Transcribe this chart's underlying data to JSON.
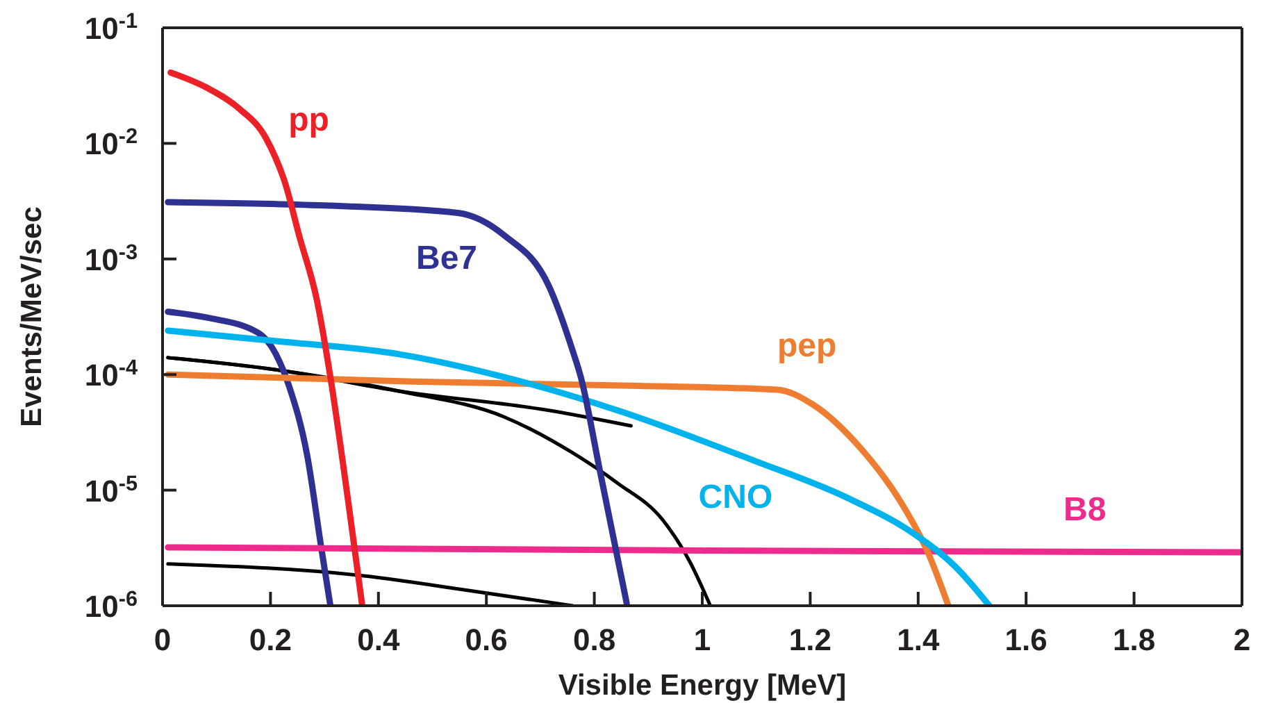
{
  "chart_data": {
    "type": "line",
    "xlabel": "Visible Energy [MeV]",
    "ylabel": "Events/MeV/sec",
    "log": "y",
    "grid": false,
    "legend": false,
    "marker": "none",
    "line_style": "solid",
    "xlim": [
      0,
      2
    ],
    "ylim": [
      1e-06,
      0.1
    ],
    "xticks": [
      0,
      0.2,
      0.4,
      0.6,
      0.8,
      1,
      1.2,
      1.4,
      1.6,
      1.8,
      2
    ],
    "yticks": [
      {
        "value": 1e-06,
        "label": "10$^{-6}$"
      },
      {
        "value": 1e-05,
        "label": "10$^{-5}$"
      },
      {
        "value": 0.0001,
        "label": "10$^{-4}$"
      },
      {
        "value": 0.001,
        "label": "10$^{-3}$"
      },
      {
        "value": 0.01,
        "label": "10$^{-2}$"
      },
      {
        "value": 0.1,
        "label": "10$^{-1}$"
      }
    ],
    "series": [
      {
        "color": "#000000",
        "x": [
          0.01,
          0.21,
          0.438,
          0.716,
          0.868
        ],
        "values": [
          0.00014,
          0.00011,
          7.2e-05,
          4.9e-05,
          3.6e-05
        ]
      },
      {
        "color": "#000000",
        "x": [
          0.01,
          0.21,
          0.438,
          0.633,
          0.76,
          0.843,
          0.927,
          0.977,
          1.015
        ],
        "values": [
          0.00014,
          0.00011,
          7.2e-05,
          4.3e-05,
          2.1e-05,
          1.15e-05,
          5.5e-06,
          2.4e-06,
          1e-06
        ]
      },
      {
        "color": "#000000",
        "x": [
          0.01,
          0.38,
          0.547,
          0.76
        ],
        "values": [
          2.3e-06,
          1.8e-06,
          1.4e-06,
          1e-06
        ]
      },
      {
        "color": "#2e3192",
        "x": [
          0.01,
          0.084,
          0.177,
          0.21,
          0.235,
          0.268,
          0.294,
          0.311
        ],
        "values": [
          0.00035,
          0.00031,
          0.00023,
          0.00015,
          7.8e-05,
          2e-05,
          3.2e-06,
          1e-06
        ]
      },
      {
        "name": "B8",
        "color": "#ec2b8c",
        "x": [
          0.01,
          1,
          2
        ],
        "values": [
          3.2e-06,
          3e-06,
          2.9e-06
        ]
      },
      {
        "name": "pep",
        "color": "#ef7d31",
        "x": [
          0.01,
          0.463,
          0.868,
          1.139,
          1.205,
          1.29,
          1.367,
          1.418,
          1.456
        ],
        "values": [
          0.0001,
          8.7e-05,
          8e-05,
          7.4e-05,
          5.5e-05,
          2.4e-05,
          8e-06,
          2.9e-06,
          1e-06
        ]
      },
      {
        "name": "CNO",
        "color": "#00b3ec",
        "x": [
          0.01,
          0.21,
          0.438,
          0.633,
          0.843,
          1.096,
          1.266,
          1.392,
          1.468,
          1.532
        ],
        "values": [
          0.00024,
          0.000195,
          0.00015,
          9.5e-05,
          4.9e-05,
          1.8e-05,
          8.7e-06,
          4.2e-06,
          2.2e-06,
          1e-06
        ]
      },
      {
        "name": "Be7",
        "color": "#2e3192",
        "x": [
          0.01,
          0.3,
          0.547,
          0.633,
          0.716,
          0.76,
          0.775,
          0.81,
          0.86
        ],
        "values": [
          0.0031,
          0.0029,
          0.0025,
          0.0016,
          0.00058,
          0.00016,
          9.5e-05,
          1.5e-05,
          1.05e-06
        ]
      },
      {
        "name": "pp",
        "color": "#ec2127",
        "x": [
          0.015,
          0.084,
          0.142,
          0.192,
          0.228,
          0.253,
          0.286,
          0.311,
          0.344,
          0.37
        ],
        "values": [
          0.041,
          0.03,
          0.02,
          0.011,
          0.0044,
          0.0016,
          0.00044,
          9.5e-05,
          8e-06,
          1e-06
        ]
      }
    ]
  }
}
